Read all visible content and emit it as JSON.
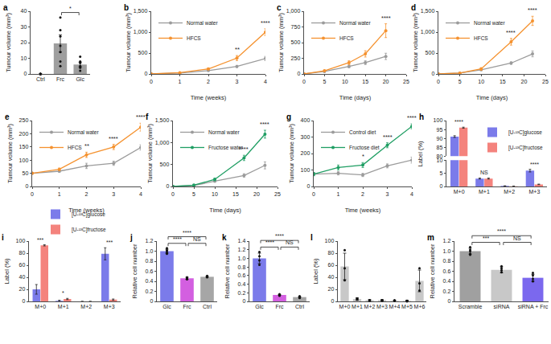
{
  "chart_data": [
    {
      "panel": "a",
      "type": "bar",
      "y_label": "Tumour volume (mm³)",
      "categories": [
        "Ctrl",
        "Frc",
        "Glc"
      ],
      "values": [
        0,
        19.5,
        6
      ],
      "errors": [
        0,
        5.5,
        1.5
      ],
      "points": [
        [
          0,
          0,
          0,
          0,
          0
        ],
        [
          36,
          28,
          24,
          18,
          14,
          8,
          5
        ],
        [
          11,
          8,
          7,
          5,
          4,
          2
        ]
      ],
      "colors": [
        "#9e9e9e",
        "#9e9e9e",
        "#9e9e9e"
      ],
      "ylim": [
        0,
        40
      ],
      "yticks": [
        0,
        10,
        20,
        30,
        40
      ],
      "significance": [
        {
          "from": "Frc",
          "to": "Glc",
          "text": "*"
        }
      ]
    },
    {
      "panel": "b",
      "type": "line",
      "x_label": "Time (weeks)",
      "y_label": "Tumour volume (mm³)",
      "x": [
        0,
        1,
        2,
        3,
        4
      ],
      "series": [
        {
          "name": "Normal water",
          "color": "#9b9b9b",
          "values": [
            0,
            20,
            80,
            180,
            370
          ],
          "errors": [
            0,
            5,
            15,
            25,
            50
          ]
        },
        {
          "name": "HFCS",
          "color": "#f5922f",
          "values": [
            0,
            30,
            120,
            380,
            1000
          ],
          "errors": [
            0,
            8,
            20,
            60,
            80
          ]
        }
      ],
      "xlim": [
        0,
        4
      ],
      "xticks": [
        0,
        1,
        2,
        3,
        4
      ],
      "ylim": [
        0,
        1500
      ],
      "yticks": [
        0,
        500,
        {
          "value": 1000,
          "label": "1,000"
        },
        {
          "value": 1500,
          "label": "1,500"
        }
      ],
      "legend": "upper left",
      "marker": "circle",
      "significance": [
        {
          "x": 3,
          "text": "**"
        },
        {
          "x": 4,
          "text": "****"
        }
      ]
    },
    {
      "panel": "c",
      "type": "line",
      "x_label": "Time (days)",
      "y_label": "Tumour volume (mm³)",
      "x": [
        0,
        5,
        11,
        15,
        20
      ],
      "series": [
        {
          "name": "Normal water",
          "color": "#9b9b9b",
          "values": [
            0,
            40,
            120,
            180,
            280
          ],
          "errors": [
            0,
            10,
            20,
            30,
            50
          ]
        },
        {
          "name": "HFCS",
          "color": "#f5922f",
          "values": [
            0,
            50,
            180,
            320,
            690
          ],
          "errors": [
            0,
            10,
            30,
            50,
            110
          ]
        }
      ],
      "xlim": [
        0,
        25
      ],
      "xticks": [
        0,
        5,
        10,
        15,
        20,
        25
      ],
      "ylim": [
        0,
        1000
      ],
      "yticks": [
        0,
        250,
        500,
        750,
        {
          "value": 1000,
          "label": "1,000"
        }
      ],
      "legend": "upper left",
      "marker": "circle",
      "significance": [
        {
          "x": 20,
          "text": "****"
        }
      ]
    },
    {
      "panel": "d",
      "type": "line",
      "x_label": "Time (days)",
      "y_label": "Tumour volume (mm³)",
      "x": [
        0,
        5,
        10,
        17,
        22
      ],
      "series": [
        {
          "name": "Normal water",
          "color": "#9b9b9b",
          "values": [
            0,
            20,
            100,
            260,
            480
          ],
          "errors": [
            0,
            5,
            20,
            30,
            70
          ]
        },
        {
          "name": "HFCS",
          "color": "#f5922f",
          "values": [
            0,
            20,
            120,
            770,
            1270
          ],
          "errors": [
            0,
            5,
            30,
            80,
            110
          ]
        }
      ],
      "xlim": [
        0,
        25
      ],
      "xticks": [
        0,
        5,
        10,
        15,
        20,
        25
      ],
      "ylim": [
        0,
        1500
      ],
      "yticks": [
        0,
        500,
        {
          "value": 1000,
          "label": "1,000"
        },
        {
          "value": 1500,
          "label": "1,500"
        }
      ],
      "legend": "upper left",
      "marker": "circle",
      "significance": [
        {
          "x": 17,
          "text": "****"
        },
        {
          "x": 22,
          "text": "****"
        }
      ]
    },
    {
      "panel": "e",
      "type": "line",
      "x_label": "Time (weeks)",
      "y_label": "Tumour volume (mm³)",
      "x": [
        0,
        1,
        2,
        3,
        4
      ],
      "series": [
        {
          "name": "Normal water",
          "color": "#9b9b9b",
          "values": [
            50,
            58,
            78,
            88,
            148
          ],
          "errors": [
            3,
            4,
            10,
            8,
            10
          ]
        },
        {
          "name": "HFCS",
          "color": "#f5922f",
          "values": [
            50,
            65,
            120,
            150,
            225
          ],
          "errors": [
            3,
            5,
            10,
            10,
            15
          ]
        }
      ],
      "xlim": [
        0,
        4
      ],
      "xticks": [
        0,
        1,
        2,
        3,
        4
      ],
      "ylim": [
        0,
        250
      ],
      "yticks": [
        0,
        50,
        100,
        150,
        200,
        250
      ],
      "legend": "upper left",
      "marker": "circle",
      "significance": [
        {
          "x": 2,
          "text": "**"
        },
        {
          "x": 3,
          "text": "****"
        },
        {
          "x": 4,
          "text": "****"
        }
      ]
    },
    {
      "panel": "f",
      "type": "line",
      "x_label": "Time (days)",
      "y_label": "Tumour volume (mm³)",
      "x": [
        0,
        5,
        10,
        17,
        22
      ],
      "series": [
        {
          "name": "Normal water",
          "color": "#9b9b9b",
          "values": [
            0,
            20,
            120,
            250,
            480
          ],
          "errors": [
            0,
            5,
            20,
            40,
            80
          ]
        },
        {
          "name": "Fructose water",
          "color": "#1f9e63",
          "values": [
            0,
            30,
            160,
            650,
            1190
          ],
          "errors": [
            0,
            5,
            30,
            60,
            90
          ]
        }
      ],
      "xlim": [
        0,
        25
      ],
      "xticks": [
        0,
        5,
        10,
        15,
        20,
        25
      ],
      "ylim": [
        0,
        1500
      ],
      "yticks": [
        0,
        500,
        {
          "value": 1000,
          "label": "1,000"
        },
        {
          "value": 1500,
          "label": "1,500"
        }
      ],
      "legend": "upper left",
      "marker": "circle",
      "significance": [
        {
          "x": 17,
          "text": "****"
        },
        {
          "x": 22,
          "text": "****"
        }
      ]
    },
    {
      "panel": "g",
      "type": "line",
      "x_label": "Time (weeks)",
      "y_label": "Tumour volume (mm³)",
      "x": [
        0,
        1,
        2,
        3,
        4
      ],
      "series": [
        {
          "name": "Control diet",
          "color": "#9b9b9b",
          "values": [
            75,
            80,
            70,
            125,
            160
          ],
          "errors": [
            10,
            10,
            10,
            12,
            18
          ]
        },
        {
          "name": "Fructose diet",
          "color": "#1f9e63",
          "values": [
            75,
            115,
            130,
            250,
            365
          ],
          "errors": [
            10,
            15,
            15,
            15,
            15
          ]
        }
      ],
      "xlim": [
        0,
        4
      ],
      "xticks": [
        0,
        1,
        2,
        3,
        4
      ],
      "ylim": [
        0,
        400
      ],
      "yticks": [
        0,
        100,
        200,
        300,
        400
      ],
      "legend": "upper left",
      "marker": "circle",
      "significance": [
        {
          "x": 2,
          "text": "*"
        },
        {
          "x": 3,
          "text": "****"
        },
        {
          "x": 4,
          "text": "****"
        }
      ]
    },
    {
      "panel": "h",
      "type": "bar",
      "y_label": "Label (%)",
      "categories": [
        "M+0",
        "M+1",
        "M+2",
        "M+3"
      ],
      "series": [
        {
          "name": "[U-¹³C]glucose",
          "color": "#7b7bea",
          "values": [
            91,
            3,
            0.2,
            6
          ],
          "errors": [
            0.5,
            0.2,
            0.05,
            0.5
          ]
        },
        {
          "name": "[U-¹³C]fructose",
          "color": "#f4837d",
          "values": [
            96,
            3,
            0.1,
            0.8
          ],
          "errors": [
            0.3,
            0.2,
            0.05,
            0.1
          ]
        }
      ],
      "ylim": [
        0,
        100
      ],
      "y_break": [
        10,
        80
      ],
      "yticks": [
        0,
        5,
        10,
        80,
        85,
        90,
        95,
        100
      ],
      "legend": "upper right",
      "significance": [
        {
          "category": "M+0",
          "text": "****"
        },
        {
          "category": "M+1",
          "text": "NS"
        },
        {
          "category": "M+3",
          "text": "****"
        }
      ]
    },
    {
      "panel": "i",
      "type": "bar",
      "y_label": "Label (%)",
      "categories": [
        "M+0",
        "M+1",
        "M+2",
        "M+3"
      ],
      "series": [
        {
          "name": "[U-¹³C]glucose",
          "color": "#7b7bea",
          "values": [
            20,
            1,
            0,
            79
          ],
          "errors": [
            8,
            1,
            0,
            10
          ]
        },
        {
          "name": "[U-¹³C]fructose",
          "color": "#f4837d",
          "values": [
            93,
            4,
            0,
            3
          ],
          "errors": [
            1,
            1,
            0,
            1
          ]
        }
      ],
      "ylim": [
        0,
        100
      ],
      "yticks": [
        0,
        20,
        40,
        60,
        80,
        100
      ],
      "legend": "top",
      "significance": [
        {
          "category": "M+0",
          "text": "***"
        },
        {
          "category": "M+1",
          "text": "*"
        },
        {
          "category": "M+3",
          "text": "***"
        }
      ]
    },
    {
      "panel": "j",
      "type": "bar",
      "y_label": "Relative cell number",
      "categories": [
        "Glc",
        "Frc",
        "Ctrl"
      ],
      "values": [
        1,
        0.46,
        0.49
      ],
      "errors": [
        0.04,
        0.02,
        0.01
      ],
      "points": [
        [
          1.06,
          1.02,
          1,
          0.97,
          0.95
        ],
        [
          0.48,
          0.46,
          0.45,
          0.44
        ],
        [
          0.51,
          0.5,
          0.49,
          0.48
        ]
      ],
      "colors": [
        "#7b7bea",
        "#d35fe0",
        "#a6a6a6"
      ],
      "ylim": [
        0,
        1.2
      ],
      "yticks": [
        0,
        0.2,
        0.4,
        0.6,
        0.8,
        {
          "value": 1,
          "label": "1.0"
        },
        1.2
      ],
      "significance": [
        {
          "from": "Glc",
          "to": "Frc",
          "text": "****"
        },
        {
          "from": "Frc",
          "to": "Ctrl",
          "text": "NS"
        },
        {
          "from": "Glc",
          "to": "Ctrl",
          "text": "****"
        }
      ]
    },
    {
      "panel": "k",
      "type": "bar",
      "y_label": "Relative cell number",
      "categories": [
        "Glc",
        "Frc",
        "Ctrl"
      ],
      "values": [
        1,
        0.15,
        0.1
      ],
      "errors": [
        0.12,
        0.01,
        0.01
      ],
      "points": [
        [
          1.15,
          1.05,
          0.95,
          0.85
        ],
        [
          0.17,
          0.15,
          0.14,
          0.13
        ],
        [
          0.12,
          0.1,
          0.09,
          0.08
        ]
      ],
      "colors": [
        "#7b7bea",
        "#d35fe0",
        "#a6a6a6"
      ],
      "ylim": [
        0,
        1.4
      ],
      "yticks": [
        0,
        0.2,
        0.4,
        0.6,
        0.8,
        {
          "value": 1,
          "label": "1.0"
        },
        1.2,
        1.4
      ],
      "significance": [
        {
          "from": "Glc",
          "to": "Frc",
          "text": "****"
        },
        {
          "from": "Frc",
          "to": "Ctrl",
          "text": "NS"
        },
        {
          "from": "Glc",
          "to": "Ctrl",
          "text": "****"
        }
      ]
    },
    {
      "panel": "l",
      "type": "bar",
      "y_label": "Label (%)",
      "categories": [
        "M+0",
        "M+1",
        "M+2",
        "M+3",
        "M+4",
        "M+5",
        "M+6"
      ],
      "values": [
        58,
        4,
        2,
        2,
        1,
        1,
        34
      ],
      "errors": [
        22,
        2,
        1,
        1,
        1,
        1,
        18
      ],
      "points": [
        [
          85,
          55,
          35
        ],
        [
          4,
          3,
          5
        ],
        [
          2,
          1,
          2
        ],
        [
          2,
          2,
          1
        ],
        [
          1,
          1,
          2
        ],
        [
          1,
          1,
          0
        ],
        [
          55,
          30,
          18
        ]
      ],
      "colors": [
        "#c8c8c8",
        "#c8c8c8",
        "#c8c8c8",
        "#c8c8c8",
        "#c8c8c8",
        "#c8c8c8",
        "#c8c8c8"
      ],
      "ylim": [
        0,
        100
      ],
      "yticks": [
        0,
        20,
        40,
        60,
        80,
        100
      ]
    },
    {
      "panel": "m",
      "type": "bar",
      "y_label": "Relative cell number",
      "categories": [
        "Scramble",
        "siRNA",
        "siRNA + Frc"
      ],
      "values": [
        1,
        0.63,
        0.47
      ],
      "errors": [
        0.06,
        0.06,
        0.07
      ],
      "points": [
        [
          1.08,
          1.03,
          1,
          0.95,
          0.93
        ],
        [
          0.7,
          0.66,
          0.62,
          0.58
        ],
        [
          0.57,
          0.52,
          0.45,
          0.4
        ]
      ],
      "colors": [
        "#a0a0a0",
        "#c8c8c8",
        "#7b68ee"
      ],
      "ylim": [
        0,
        1.2
      ],
      "yticks": [
        0,
        0.2,
        0.4,
        0.6,
        0.8,
        {
          "value": 1,
          "label": "1.0"
        },
        1.2
      ],
      "significance": [
        {
          "from": "Scramble",
          "to": "siRNA",
          "text": "***"
        },
        {
          "from": "siRNA",
          "to": "siRNA + Frc",
          "text": "NS"
        },
        {
          "from": "Scramble",
          "to": "siRNA + Frc",
          "text": "****"
        }
      ]
    }
  ]
}
